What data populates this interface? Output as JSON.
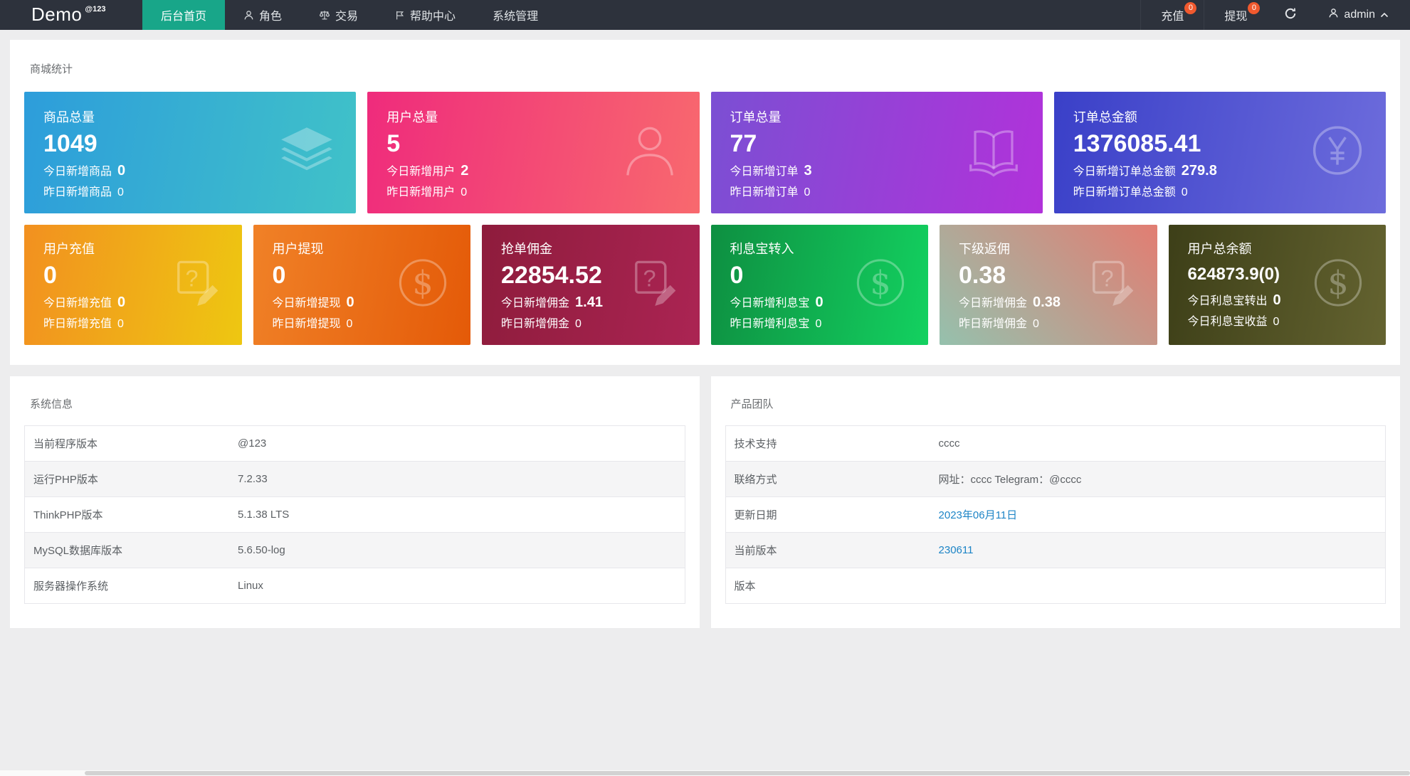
{
  "navbar": {
    "brand": "Demo",
    "brand_sup": "@123",
    "menu": [
      {
        "label": "后台首页",
        "icon": "",
        "active": true
      },
      {
        "label": "角色",
        "icon": "user",
        "active": false
      },
      {
        "label": "交易",
        "icon": "scales",
        "active": false
      },
      {
        "label": "帮助中心",
        "icon": "flag",
        "active": false
      },
      {
        "label": "系统管理",
        "icon": "",
        "active": false
      }
    ],
    "actions": [
      {
        "label": "充值",
        "badge": "0"
      },
      {
        "label": "提现",
        "badge": "0"
      }
    ],
    "username": "admin",
    "colors": {
      "bar_bg": "#2d323c",
      "active_bg": "#18a689",
      "badge_bg": "#f0592e"
    }
  },
  "stats": {
    "section_title": "商城统计",
    "row1": [
      {
        "title": "商品总量",
        "value": "1049",
        "line1_label": "今日新增商品",
        "line1_value": "0",
        "line2_label": "昨日新增商品",
        "line2_value": "0",
        "icon": "layers-icon",
        "bg": {
          "angle": "100deg",
          "from": "#2d9ddb",
          "to": "#40c2c8"
        }
      },
      {
        "title": "用户总量",
        "value": "5",
        "line1_label": "今日新增用户",
        "line1_value": "2",
        "line2_label": "昨日新增用户",
        "line2_value": "0",
        "icon": "user-icon",
        "bg": {
          "angle": "100deg",
          "from": "#ef2b7c",
          "to": "#f8696e"
        }
      },
      {
        "title": "订单总量",
        "value": "77",
        "line1_label": "今日新增订单",
        "line1_value": "3",
        "line2_label": "昨日新增订单",
        "line2_value": "0",
        "icon": "book-icon",
        "bg": {
          "angle": "100deg",
          "from": "#7b4fd3",
          "to": "#b132da"
        }
      },
      {
        "title": "订单总金额",
        "value": "1376085.41",
        "line1_label": "今日新增订单总金额",
        "line1_value": "279.8",
        "line2_label": "昨日新增订单总金额",
        "line2_value": "0",
        "icon": "yen-icon",
        "bg": {
          "angle": "100deg",
          "from": "#3a40c8",
          "to": "#6d6cdc"
        }
      }
    ],
    "row2": [
      {
        "title": "用户充值",
        "value": "0",
        "line1_label": "今日新增充值",
        "line1_value": "0",
        "line2_label": "昨日新增充值",
        "line2_value": "0",
        "icon": "doc-edit-icon",
        "bg": {
          "angle": "100deg",
          "from": "#f29020",
          "to": "#eec711"
        }
      },
      {
        "title": "用户提现",
        "value": "0",
        "line1_label": "今日新增提现",
        "line1_value": "0",
        "line2_label": "昨日新增提现",
        "line2_value": "0",
        "icon": "dollar-icon",
        "bg": {
          "angle": "100deg",
          "from": "#f08127",
          "to": "#e45a08"
        }
      },
      {
        "title": "抢单佣金",
        "value": "22854.52",
        "line1_label": "今日新增佣金",
        "line1_value": "1.41",
        "line2_label": "昨日新增佣金",
        "line2_value": "0",
        "icon": "doc-edit-icon",
        "bg": {
          "angle": "100deg",
          "from": "#8e1c3c",
          "to": "#ab2453"
        }
      },
      {
        "title": "利息宝转入",
        "value": "0",
        "line1_label": "今日新增利息宝",
        "line1_value": "0",
        "line2_label": "昨日新增利息宝",
        "line2_value": "0",
        "icon": "dollar-icon",
        "bg": {
          "angle": "100deg",
          "from": "#0e8f41",
          "to": "#13d160"
        }
      },
      {
        "title": "下级返佣",
        "value": "0.38",
        "line1_label": "今日新增佣金",
        "line1_value": "0.38",
        "line2_label": "昨日新增佣金",
        "line2_value": "0",
        "icon": "doc-edit-icon",
        "bg": {
          "angle": "45deg",
          "from": "#95c1ad",
          "to": "#e27d72"
        }
      },
      {
        "title": "用户总余额",
        "value": "624873.9(0)",
        "value_small": true,
        "line1_label": "今日利息宝转出",
        "line1_value": "0",
        "line2_label": "今日利息宝收益",
        "line2_value": "0",
        "icon": "dollar-icon",
        "bg": {
          "angle": "100deg",
          "from": "#3d3f18",
          "to": "#646330"
        }
      }
    ]
  },
  "panels": {
    "system": {
      "title": "系统信息",
      "rows": [
        {
          "label": "当前程序版本",
          "value": "@123",
          "link": false
        },
        {
          "label": "运行PHP版本",
          "value": "7.2.33",
          "link": false
        },
        {
          "label": "ThinkPHP版本",
          "value": "5.1.38 LTS",
          "link": false
        },
        {
          "label": "MySQL数据库版本",
          "value": "5.6.50-log",
          "link": false
        },
        {
          "label": "服务器操作系统",
          "value": "Linux",
          "link": false
        }
      ]
    },
    "team": {
      "title": "产品团队",
      "rows": [
        {
          "label": "技术支持",
          "value": "cccc",
          "link": false
        },
        {
          "label": "联络方式",
          "value": "网址：cccc Telegram：@cccc",
          "link": false
        },
        {
          "label": "更新日期",
          "value": "2023年06月11日",
          "link": true
        },
        {
          "label": "当前版本",
          "value": "230611",
          "link": true
        },
        {
          "label": "版本",
          "value": "",
          "link": false
        }
      ]
    }
  },
  "colors": {
    "link": "#1c84c6",
    "page_bg": "#ededee"
  }
}
